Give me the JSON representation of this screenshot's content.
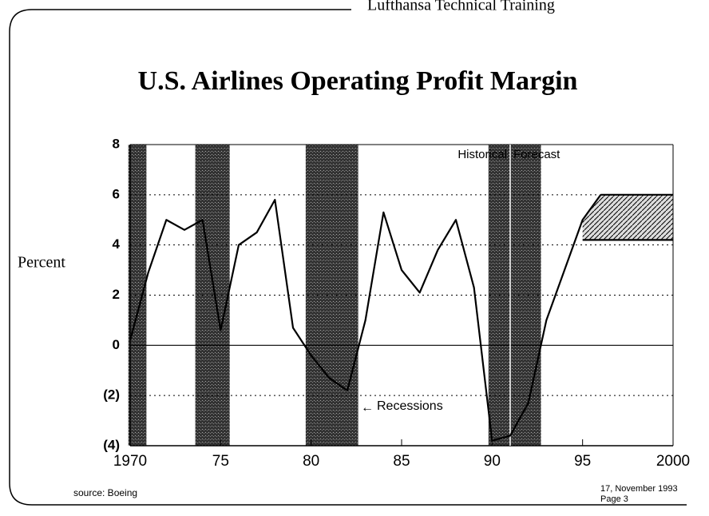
{
  "header": "Lufthansa Technical Training",
  "footer": {
    "source": "source: Boeing",
    "date": "17, November 1993",
    "page": "Page 3"
  },
  "chart_data": {
    "type": "line",
    "title": "U.S. Airlines Operating Profit Margin",
    "y_label": "Percent",
    "annotations": {
      "historical": "Historical",
      "forecast": "Forecast",
      "recessions": "Recessions"
    },
    "divider_x": 1991,
    "recessions": [
      [
        1969.9,
        1970.9
      ],
      [
        1973.6,
        1975.5
      ],
      [
        1979.7,
        1982.6
      ],
      [
        1989.8,
        1992.7
      ]
    ],
    "xlim": [
      1970,
      2000
    ],
    "xticks": [
      1970,
      {
        "value": 1975,
        "label": "75"
      },
      {
        "value": 1980,
        "label": "80"
      },
      {
        "value": 1985,
        "label": "85"
      },
      {
        "value": 1990,
        "label": "90"
      },
      {
        "value": 1995,
        "label": "95"
      },
      2000
    ],
    "ylim": [
      -4,
      8
    ],
    "yticks": [
      {
        "value": -4,
        "label": "(4)"
      },
      {
        "value": -2,
        "label": "(2)"
      },
      0,
      2,
      4,
      6,
      8
    ],
    "grid": true,
    "series": [
      {
        "color": "#000000",
        "x": [
          1970,
          1971,
          1972,
          1973,
          1974,
          1975,
          1976,
          1977,
          1978,
          1979,
          1980,
          1981,
          1982,
          1983,
          1984,
          1985,
          1986,
          1987,
          1988,
          1989,
          1990,
          1991,
          1992,
          1993,
          1994,
          1995,
          1996
        ],
        "values": [
          0.2,
          2.9,
          5.0,
          4.6,
          5.0,
          0.6,
          4.0,
          4.5,
          5.8,
          0.7,
          -0.4,
          -1.3,
          -1.8,
          1.0,
          5.3,
          3.0,
          2.1,
          3.8,
          5.0,
          2.3,
          -3.8,
          -3.6,
          -2.3,
          1.0,
          3.0,
          5.0,
          6.0
        ]
      },
      {
        "color": "#000000",
        "x": [
          1996,
          2000
        ],
        "values": [
          6.0,
          6.0
        ]
      },
      {
        "color": "#000000",
        "x": [
          1995,
          2000
        ],
        "values": [
          4.2,
          4.2
        ]
      }
    ]
  }
}
